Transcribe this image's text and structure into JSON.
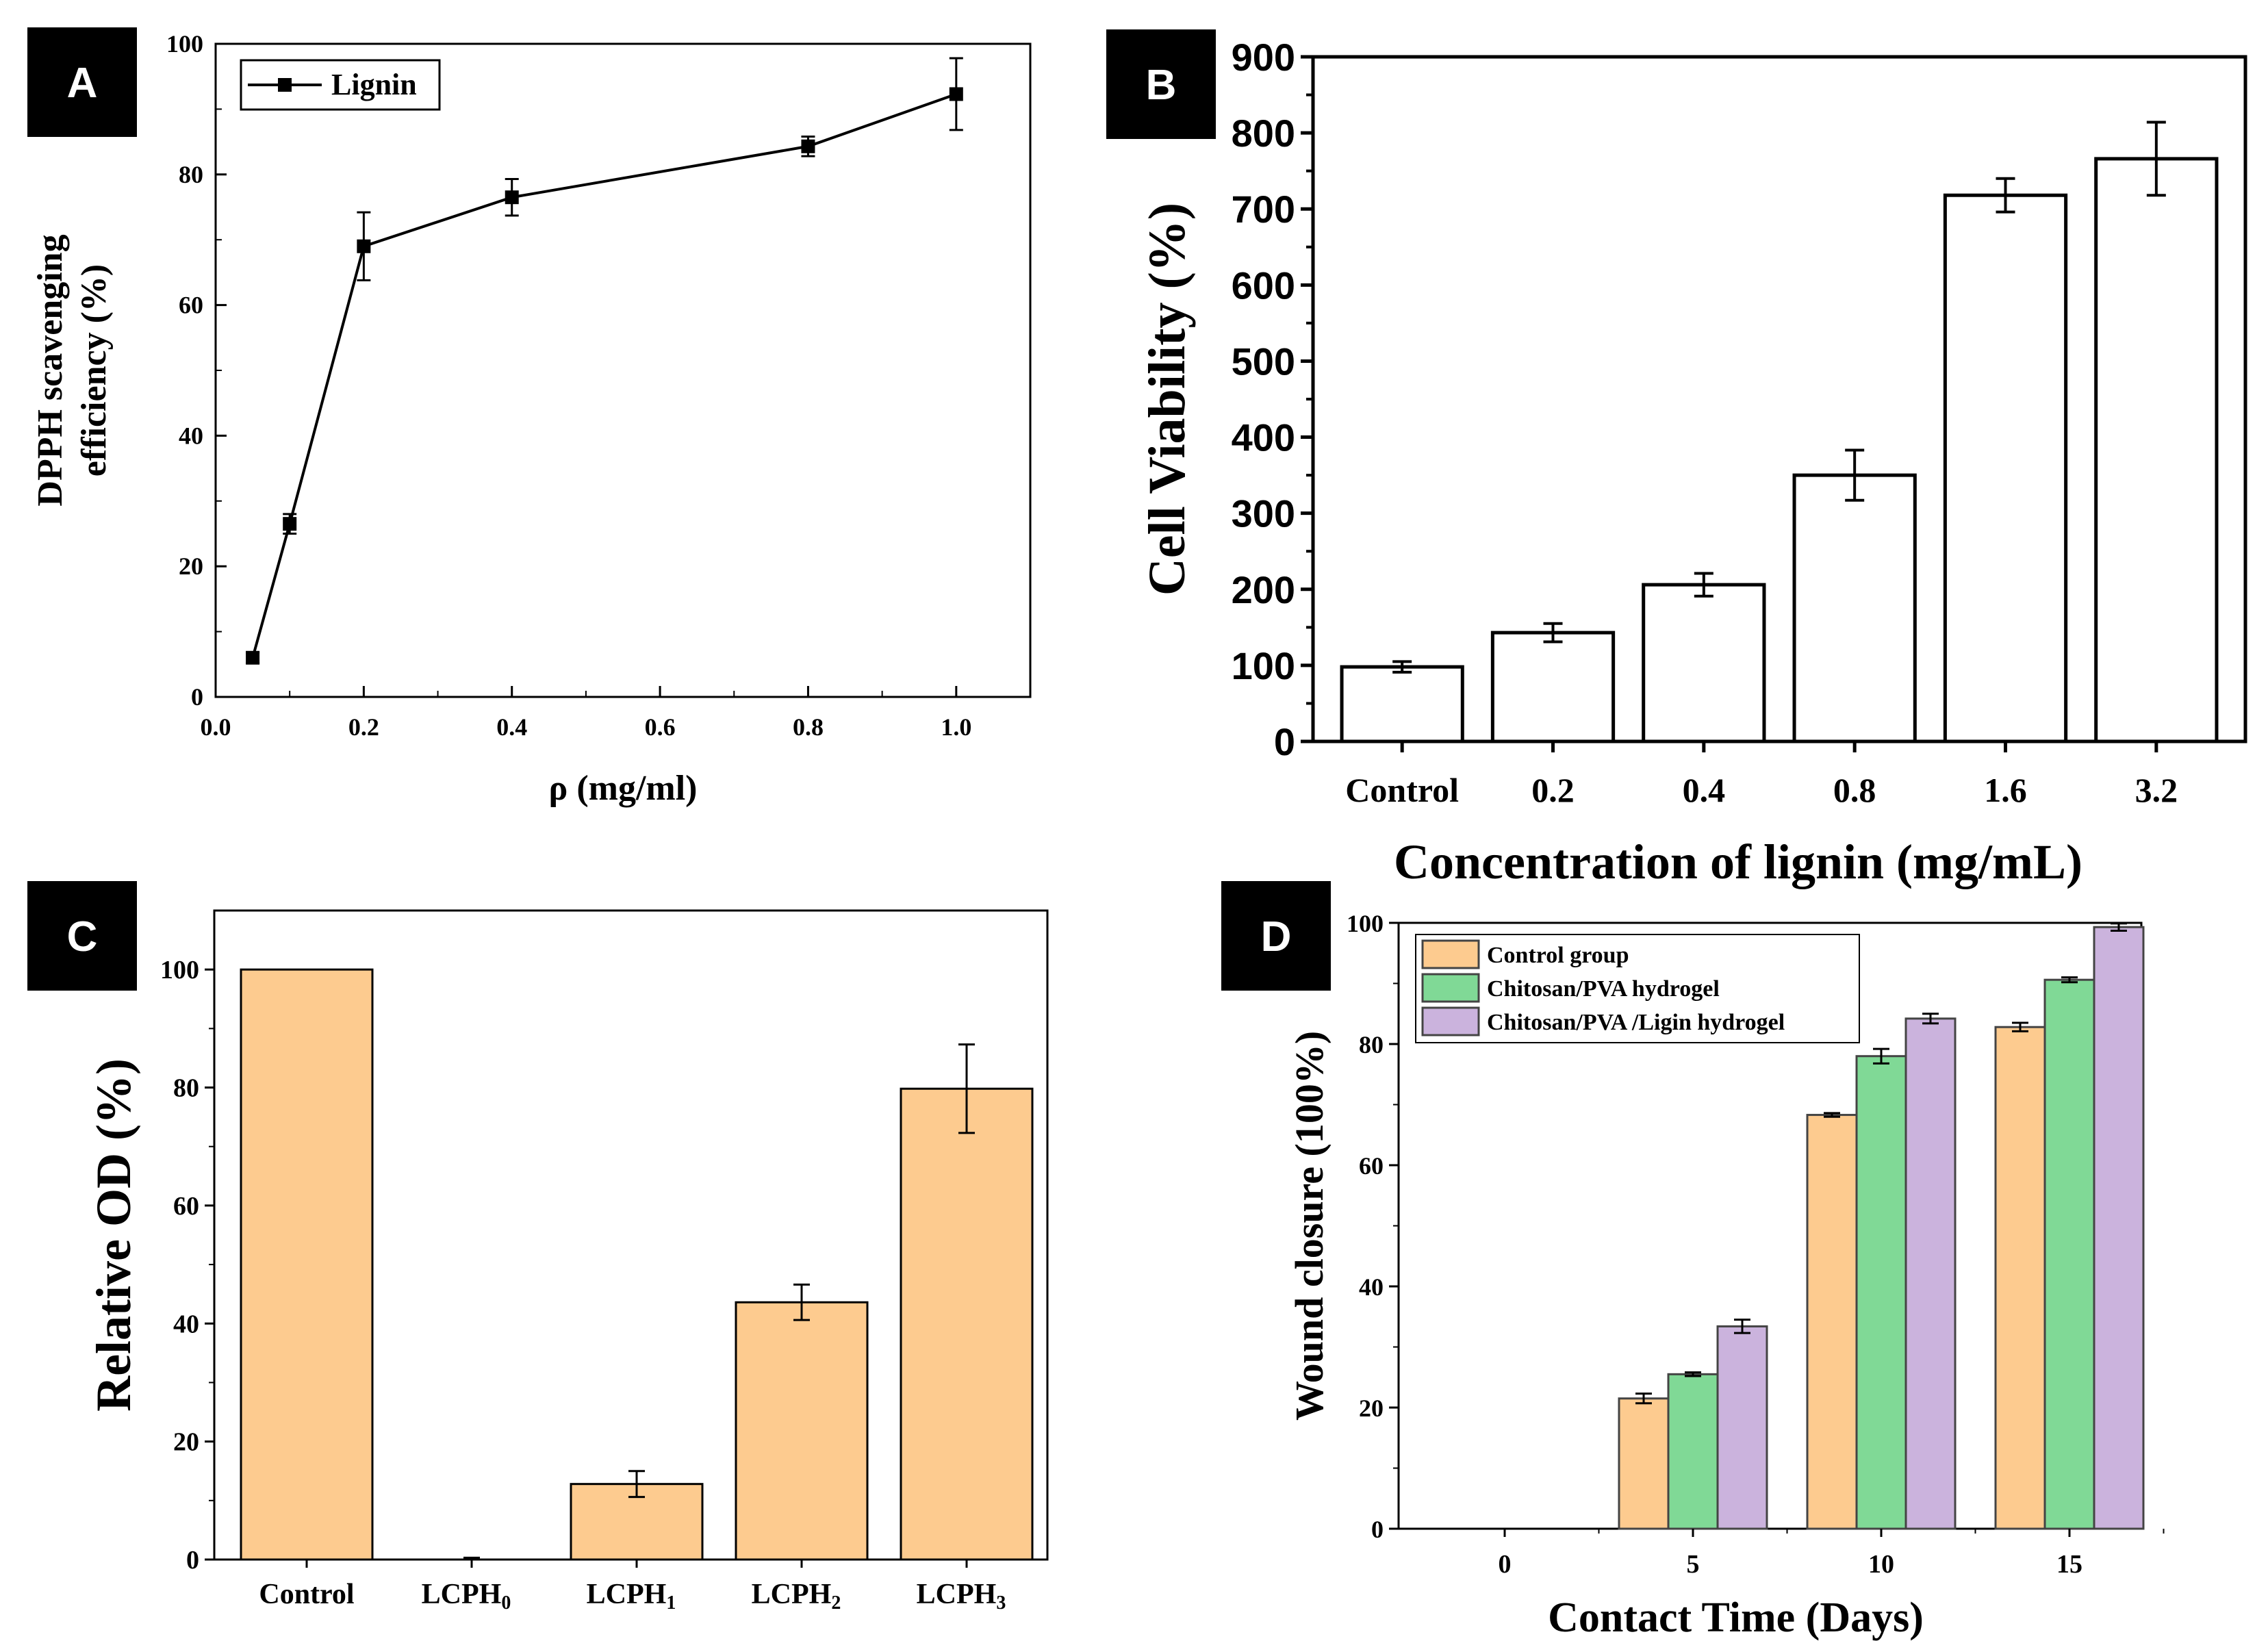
{
  "chart_data": [
    {
      "panel": "A",
      "type": "line",
      "title": "",
      "xlabel": "ρ (mg/ml)",
      "ylabel": "DPPH scavenging efficiency (%)",
      "ylabel_lines": [
        "DPPH scavenging",
        "efficiency (%)"
      ],
      "xlim": [
        0.0,
        1.1
      ],
      "ylim": [
        0,
        100
      ],
      "xticks": [
        "0.0",
        "0.2",
        "0.4",
        "0.6",
        "0.8",
        "1.0"
      ],
      "yticks": [
        "0",
        "20",
        "40",
        "60",
        "80",
        "100"
      ],
      "legend": [
        "Lignin"
      ],
      "series": [
        {
          "name": "Lignin",
          "x": [
            0.05,
            0.1,
            0.2,
            0.4,
            0.8,
            1.0
          ],
          "y": [
            6,
            26.5,
            69,
            76.5,
            84.3,
            92.3
          ],
          "err": [
            0.8,
            1.5,
            5.2,
            2.8,
            1.5,
            5.5
          ]
        }
      ]
    },
    {
      "panel": "B",
      "type": "bar",
      "title": "",
      "xlabel": "Concentration of lignin (mg/mL)",
      "ylabel": "Cell Viability (%)",
      "ylim": [
        0,
        900
      ],
      "yticks": [
        "0",
        "100",
        "200",
        "300",
        "400",
        "500",
        "600",
        "700",
        "800",
        "900"
      ],
      "categories": [
        "Control",
        "0.2",
        "0.4",
        "0.8",
        "1.6",
        "3.2"
      ],
      "values": [
        98,
        143,
        206,
        350,
        718,
        766
      ],
      "err": [
        7,
        12,
        15,
        33,
        22,
        48
      ]
    },
    {
      "panel": "C",
      "type": "bar",
      "title": "",
      "xlabel": "",
      "ylabel": "Relative OD (%)",
      "ylim": [
        0,
        110
      ],
      "yticks": [
        "0",
        "20",
        "40",
        "60",
        "80",
        "100"
      ],
      "categories": [
        {
          "base": "Control",
          "sub": ""
        },
        {
          "base": "LCPH",
          "sub": "0"
        },
        {
          "base": "LCPH",
          "sub": "1"
        },
        {
          "base": "LCPH",
          "sub": "2"
        },
        {
          "base": "LCPH",
          "sub": "3"
        }
      ],
      "values": [
        100,
        0,
        12.8,
        43.6,
        79.8
      ],
      "err": [
        0,
        0.3,
        2.2,
        3,
        7.5
      ]
    },
    {
      "panel": "D",
      "type": "bar",
      "title": "",
      "xlabel": "Contact Time (Days)",
      "ylabel": "Wound closure (100%)",
      "ylim": [
        0,
        100
      ],
      "yticks": [
        "0",
        "20",
        "40",
        "60",
        "80",
        "100"
      ],
      "categories": [
        "0",
        "5",
        "10",
        "15"
      ],
      "series": [
        {
          "name": "Control group",
          "values": [
            0,
            21.5,
            68.3,
            82.8
          ],
          "err": [
            0,
            0.8,
            0.3,
            0.7
          ],
          "color": "#fdcb8f"
        },
        {
          "name": "Chitosan/PVA hydrogel",
          "values": [
            0,
            25.5,
            78,
            90.6
          ],
          "err": [
            0,
            0.3,
            1.2,
            0.4
          ],
          "color": "#80d996"
        },
        {
          "name": "Chitosan/PVA /Ligin hydrogel",
          "values": [
            0,
            33.4,
            84.2,
            99.3
          ],
          "err": [
            0,
            1.1,
            0.8,
            0.6
          ],
          "color": "#cbb3dd"
        }
      ]
    }
  ],
  "panel_labels": [
    "A",
    "B",
    "C",
    "D"
  ],
  "colors": {
    "bar_c_fill": "#fdcb8f",
    "bar_b_fill": "#ffffff",
    "axis": "#000000",
    "panel_label_bg": "#000000",
    "panel_label_text": "#ffffff"
  }
}
